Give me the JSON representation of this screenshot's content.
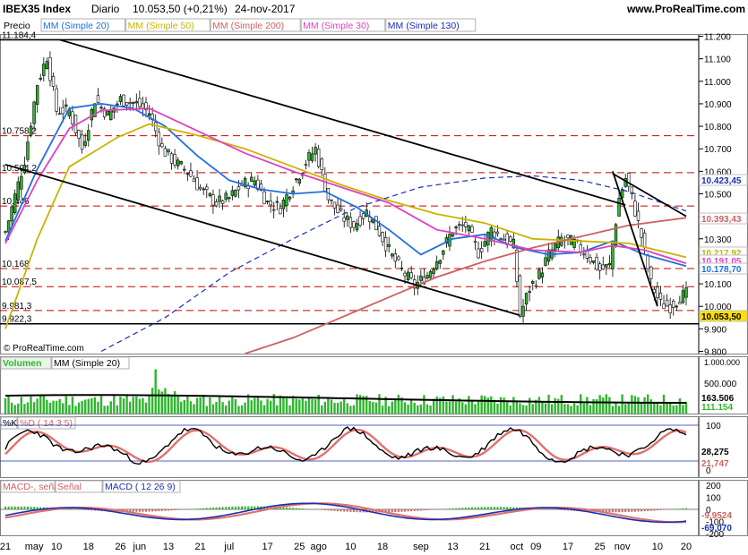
{
  "header": {
    "symbol": "IBEX35 Index",
    "period": "Diario",
    "last": "10.053,50 (+0,21%)",
    "date": "24-nov-2017",
    "site": "www.ProRealTime.com"
  },
  "price_panel": {
    "label": "Precio",
    "indicators": [
      {
        "label": "MM (Simple 20)",
        "color": "#1f6fe0"
      },
      {
        "label": "MM (Simple 50)",
        "color": "#c8b400"
      },
      {
        "label": "MM (Simple 200)",
        "color": "#d06060"
      },
      {
        "label": "MM (Simple 30)",
        "color": "#e040c0"
      },
      {
        "label": "MM (Simple 130)",
        "color": "#1a2fb0"
      }
    ],
    "watermark": "© ProRealTime.com",
    "level_labels": [
      "11.184,4",
      "10.758,2",
      "10.594,2",
      "10.446",
      "10.168",
      "10.087,5",
      "9.981,3",
      "9.922,3"
    ],
    "axis_badges": [
      {
        "text": "10.423,45",
        "color": "#1a2fb0"
      },
      {
        "text": "10.393,43",
        "color": "#d06060"
      },
      {
        "text": "10.217,92",
        "color": "#c8b400"
      },
      {
        "text": "10.191,05",
        "color": "#e040c0"
      },
      {
        "text": "10.178,70",
        "color": "#1f6fe0"
      },
      {
        "text": "10.053,50",
        "color": "#ffe000"
      }
    ]
  },
  "volume_panel": {
    "label": "Volumen",
    "ma_label": "MM (Simple 20)",
    "axis_labels": [
      "1.000.000",
      "500.000"
    ],
    "values_labels": [
      {
        "text": "163.506",
        "color": "#000000"
      },
      {
        "text": "111.154",
        "color": "#2fb52f"
      }
    ]
  },
  "stoch_panel": {
    "k_label": "%K",
    "d_label": "%D ( 14 3 5)",
    "axis_labels": [
      "100",
      "0"
    ],
    "values_labels": [
      {
        "text": "28,275",
        "color": "#000000"
      },
      {
        "text": "21,747",
        "color": "#d06060"
      }
    ]
  },
  "macd_panel": {
    "hist_label": "MACD-, señal",
    "signal_label": "Señal",
    "macd_label": "MACD ( 12 26 9)",
    "axis_labels": [
      "200",
      "100",
      "0",
      "-100",
      "-200"
    ],
    "values_labels": [
      {
        "text": "-9,9524",
        "color": "#d06060"
      },
      {
        "text": "-69,070",
        "color": "#1a2fb0"
      }
    ]
  },
  "x_axis_labels": [
    "21",
    "may",
    "10",
    "18",
    "26",
    "jun",
    "13",
    "21",
    "jul",
    "17",
    "25",
    "ago",
    "10",
    "18",
    "sep",
    "13",
    "21",
    "oct",
    "09",
    "17",
    "25",
    "nov",
    "10",
    "20"
  ],
  "chart_data": {
    "type": "candlestick",
    "title": "IBEX35 Index Diario",
    "y_ticks": [
      9800,
      9900,
      10000,
      10100,
      10200,
      10300,
      10400,
      10500,
      10600,
      10700,
      10800,
      10900,
      11000,
      11100,
      11200
    ],
    "y_tick_labels": [
      "9.800",
      "9.900",
      "10.000",
      "10.100",
      "10.200",
      "10.300",
      "10.400",
      "10.500",
      "10.600",
      "10.700",
      "10.800",
      "10.900",
      "11.000",
      "11.100",
      "11.200"
    ],
    "ylim": [
      9790,
      11210
    ],
    "horizontal_levels": [
      11184.4,
      10758.2,
      10594.2,
      10446,
      10168,
      10087.5,
      9981.3,
      9922.3
    ],
    "close_anchors": [
      [
        0,
        10330
      ],
      [
        6,
        10650
      ],
      [
        10,
        10990
      ],
      [
        13,
        11110
      ],
      [
        16,
        10870
      ],
      [
        20,
        10870
      ],
      [
        24,
        10700
      ],
      [
        28,
        10920
      ],
      [
        32,
        10850
      ],
      [
        36,
        10920
      ],
      [
        41,
        10900
      ],
      [
        45,
        10860
      ],
      [
        49,
        10700
      ],
      [
        53,
        10640
      ],
      [
        57,
        10600
      ],
      [
        61,
        10520
      ],
      [
        66,
        10460
      ],
      [
        70,
        10480
      ],
      [
        74,
        10540
      ],
      [
        78,
        10560
      ],
      [
        82,
        10460
      ],
      [
        86,
        10440
      ],
      [
        90,
        10540
      ],
      [
        94,
        10640
      ],
      [
        97,
        10700
      ],
      [
        101,
        10480
      ],
      [
        105,
        10400
      ],
      [
        109,
        10360
      ],
      [
        113,
        10420
      ],
      [
        117,
        10330
      ],
      [
        121,
        10220
      ],
      [
        124,
        10160
      ],
      [
        128,
        10090
      ],
      [
        132,
        10140
      ],
      [
        136,
        10230
      ],
      [
        140,
        10340
      ],
      [
        144,
        10360
      ],
      [
        148,
        10240
      ],
      [
        152,
        10340
      ],
      [
        156,
        10300
      ],
      [
        159,
        10270
      ],
      [
        161,
        9960
      ],
      [
        164,
        10080
      ],
      [
        167,
        10140
      ],
      [
        170,
        10230
      ],
      [
        174,
        10300
      ],
      [
        178,
        10280
      ],
      [
        182,
        10230
      ],
      [
        186,
        10160
      ],
      [
        189,
        10180
      ],
      [
        192,
        10480
      ],
      [
        194,
        10570
      ],
      [
        196,
        10480
      ],
      [
        199,
        10310
      ],
      [
        202,
        10100
      ],
      [
        205,
        10010
      ],
      [
        208,
        10000
      ],
      [
        211,
        10040
      ],
      [
        213,
        10053.5
      ]
    ],
    "ma_series": [
      {
        "name": "MM (Simple 20)",
        "color": "#1f6fe0",
        "points": [
          [
            0,
            10290
          ],
          [
            10,
            10610
          ],
          [
            20,
            10880
          ],
          [
            30,
            10900
          ],
          [
            40,
            10880
          ],
          [
            50,
            10800
          ],
          [
            60,
            10670
          ],
          [
            70,
            10560
          ],
          [
            80,
            10520
          ],
          [
            90,
            10500
          ],
          [
            100,
            10510
          ],
          [
            110,
            10440
          ],
          [
            120,
            10340
          ],
          [
            130,
            10230
          ],
          [
            140,
            10300
          ],
          [
            150,
            10320
          ],
          [
            160,
            10260
          ],
          [
            170,
            10230
          ],
          [
            180,
            10240
          ],
          [
            190,
            10290
          ],
          [
            200,
            10230
          ],
          [
            213,
            10178.7
          ]
        ]
      },
      {
        "name": "MM (Simple 50)",
        "color": "#c8b400",
        "points": [
          [
            0,
            9900
          ],
          [
            10,
            10300
          ],
          [
            20,
            10620
          ],
          [
            35,
            10750
          ],
          [
            45,
            10810
          ],
          [
            60,
            10760
          ],
          [
            75,
            10700
          ],
          [
            90,
            10620
          ],
          [
            105,
            10540
          ],
          [
            120,
            10470
          ],
          [
            135,
            10410
          ],
          [
            150,
            10370
          ],
          [
            165,
            10300
          ],
          [
            180,
            10290
          ],
          [
            195,
            10280
          ],
          [
            213,
            10217.92
          ]
        ]
      },
      {
        "name": "MM (Simple 200)",
        "color": "#d06060",
        "points": [
          [
            75,
            9790
          ],
          [
            90,
            9860
          ],
          [
            105,
            9950
          ],
          [
            120,
            10040
          ],
          [
            135,
            10130
          ],
          [
            150,
            10200
          ],
          [
            165,
            10260
          ],
          [
            180,
            10310
          ],
          [
            195,
            10360
          ],
          [
            213,
            10393.43
          ]
        ]
      },
      {
        "name": "MM (Simple 30)",
        "color": "#e040c0",
        "points": [
          [
            0,
            10280
          ],
          [
            10,
            10560
          ],
          [
            20,
            10790
          ],
          [
            30,
            10870
          ],
          [
            45,
            10880
          ],
          [
            60,
            10780
          ],
          [
            75,
            10680
          ],
          [
            90,
            10600
          ],
          [
            105,
            10530
          ],
          [
            120,
            10460
          ],
          [
            135,
            10340
          ],
          [
            150,
            10300
          ],
          [
            165,
            10250
          ],
          [
            180,
            10240
          ],
          [
            190,
            10270
          ],
          [
            200,
            10250
          ],
          [
            213,
            10191.05
          ]
        ]
      },
      {
        "name": "MM (Simple 130)",
        "color": "#1a2fb0",
        "points": [
          [
            30,
            9800
          ],
          [
            50,
            9950
          ],
          [
            70,
            10150
          ],
          [
            90,
            10300
          ],
          [
            110,
            10440
          ],
          [
            130,
            10530
          ],
          [
            150,
            10570
          ],
          [
            165,
            10580
          ],
          [
            180,
            10560
          ],
          [
            195,
            10510
          ],
          [
            213,
            10423.45
          ]
        ]
      }
    ],
    "trendlines": [
      {
        "from": [
          17,
          11184.4
        ],
        "to": [
          194,
          10450
        ]
      },
      {
        "from": [
          0,
          10630
        ],
        "to": [
          161,
          9960
        ]
      },
      {
        "from": [
          190,
          10590
        ],
        "to": [
          213,
          10400
        ]
      },
      {
        "from": [
          190,
          10600
        ],
        "to": [
          204,
          10000
        ]
      }
    ]
  }
}
